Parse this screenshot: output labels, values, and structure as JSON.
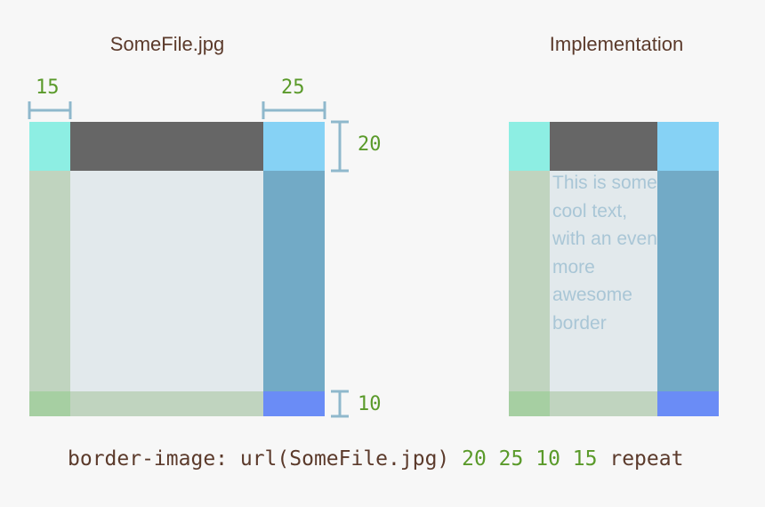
{
  "left_panel": {
    "title": "SomeFile.jpg",
    "dim_left": "15",
    "dim_right": "25",
    "dim_top": "20",
    "dim_bottom": "10"
  },
  "right_panel": {
    "title": "Implementation",
    "text": "This is some cool text, with an even more awesome border"
  },
  "code": {
    "prefix": "border-image: url(SomeFile.jpg) ",
    "v1": "20",
    "v2": "25",
    "v3": "10",
    "v4": "15",
    "suffix": "repeat"
  },
  "colors": {
    "top_left": "#8deee3",
    "top": "#666666",
    "top_right": "#86d2f5",
    "left": "#c0d4bf",
    "center": "#e2e9ec",
    "right": "#72aac6",
    "bottom_left": "#a6cfa2",
    "bottom": "#c0d4bf",
    "bottom_right": "#6a8cf6",
    "dimension_line": "#8fb8cc",
    "number": "#5a9a2a",
    "heading": "#5b3a2b"
  }
}
